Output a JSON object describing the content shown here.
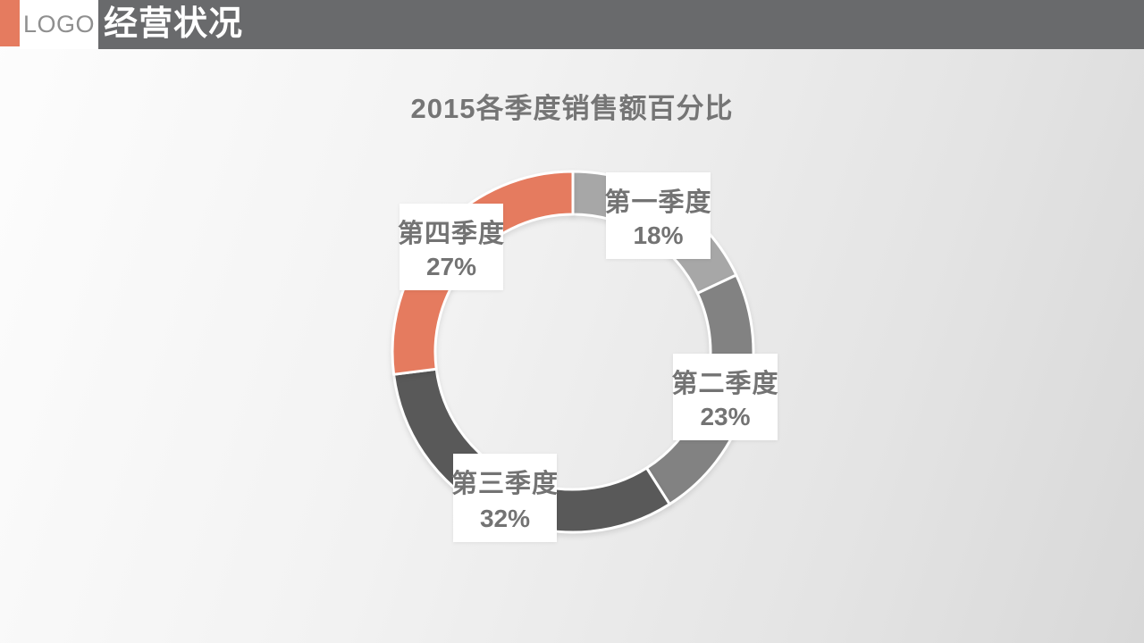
{
  "header": {
    "logo_text": "LOGO",
    "title": "经营状况",
    "accent_color": "#e57b5f",
    "bar_color": "#696a6c"
  },
  "chart_data": {
    "type": "pie",
    "subtype": "donut",
    "title": "2015各季度销售额百分比",
    "categories": [
      "第一季度",
      "第二季度",
      "第三季度",
      "第四季度"
    ],
    "values": [
      18,
      23,
      32,
      27
    ],
    "value_labels": [
      "18%",
      "23%",
      "32%",
      "27%"
    ],
    "colors": [
      "#a7a7a7",
      "#828282",
      "#595959",
      "#e57b5f"
    ],
    "start_angle_deg": 0,
    "direction": "clockwise",
    "segment_outline_color": "#ffffff",
    "label_text_color": "#737373",
    "legend_position": "none"
  }
}
